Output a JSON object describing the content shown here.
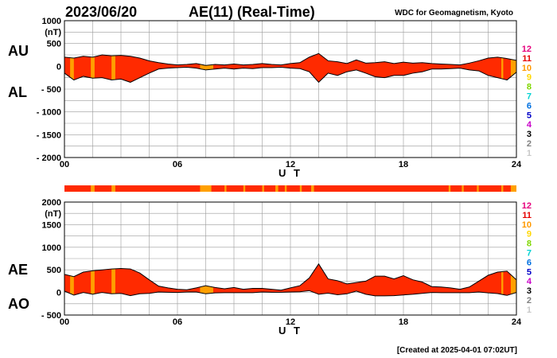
{
  "header": {
    "date": "2023/06/20",
    "title": "AE(11) (Real-Time)",
    "source": "WDC for Geomagnetism, Kyoto"
  },
  "footer": {
    "created": "[Created at 2025-04-01 07:02UT]"
  },
  "colors": {
    "fill_primary": "#ff2a00",
    "fill_partial": "#ffa000",
    "grid": "#9a9a9a",
    "curve": "#000000"
  },
  "station_count_legend": [
    {
      "label": "12",
      "color": "#e6007e"
    },
    {
      "label": "11",
      "color": "#e60000"
    },
    {
      "label": "10",
      "color": "#ff9900"
    },
    {
      "label": "9",
      "color": "#ffd700"
    },
    {
      "label": "8",
      "color": "#7fd700"
    },
    {
      "label": "7",
      "color": "#00d2d2"
    },
    {
      "label": "6",
      "color": "#0070e0"
    },
    {
      "label": "5",
      "color": "#0000c8"
    },
    {
      "label": "4",
      "color": "#c800c8"
    },
    {
      "label": "3",
      "color": "#000000"
    },
    {
      "label": "2",
      "color": "#808080"
    },
    {
      "label": "1",
      "color": "#c8c8c8"
    }
  ],
  "chart_data": [
    {
      "type": "area",
      "panel": "AU/AL",
      "series_labels": [
        "AU",
        "AL"
      ],
      "yunit": "(nT)",
      "xlabel": "U T",
      "xlim": [
        0,
        24
      ],
      "ylim": [
        -2000,
        1000
      ],
      "yticks": [
        "1000",
        "500",
        "0",
        "- 500",
        "- 1000",
        "- 1500",
        "- 2000"
      ],
      "ytick_values": [
        1000,
        500,
        0,
        -500,
        -1000,
        -1500,
        -2000
      ],
      "xticks": [
        "00",
        "06",
        "12",
        "18",
        "24"
      ],
      "xtick_values": [
        0,
        6,
        12,
        18,
        24
      ],
      "x": [
        0,
        0.5,
        1,
        1.5,
        2,
        2.5,
        3,
        3.5,
        4,
        4.5,
        5,
        5.5,
        6,
        6.5,
        7,
        7.5,
        8,
        8.5,
        9,
        9.5,
        10,
        10.5,
        11,
        11.5,
        12,
        12.5,
        13,
        13.5,
        14,
        14.5,
        15,
        15.5,
        16,
        16.5,
        17,
        17.5,
        18,
        18.5,
        19,
        19.5,
        20,
        20.5,
        21,
        21.5,
        22,
        22.5,
        23,
        23.5,
        24
      ],
      "au": [
        200,
        180,
        220,
        200,
        250,
        230,
        240,
        220,
        180,
        120,
        80,
        50,
        30,
        40,
        60,
        20,
        40,
        30,
        50,
        30,
        40,
        60,
        40,
        30,
        60,
        80,
        200,
        280,
        120,
        100,
        60,
        140,
        70,
        80,
        100,
        60,
        90,
        70,
        80,
        60,
        50,
        40,
        30,
        70,
        120,
        180,
        200,
        170,
        130
      ],
      "al": [
        -150,
        -300,
        -220,
        -260,
        -250,
        -300,
        -280,
        -350,
        -250,
        -150,
        -60,
        -40,
        -30,
        -20,
        -40,
        -80,
        -60,
        -40,
        -60,
        -40,
        -50,
        -30,
        -30,
        -20,
        -40,
        -50,
        -120,
        -350,
        -150,
        -200,
        -120,
        -80,
        -150,
        -230,
        -250,
        -200,
        -200,
        -150,
        -120,
        -60,
        -60,
        -50,
        -40,
        -80,
        -100,
        -200,
        -250,
        -300,
        -130
      ],
      "partial_bands": [
        [
          0.3,
          0.5
        ],
        [
          1.4,
          1.6
        ],
        [
          2.5,
          2.7
        ],
        [
          7.2,
          7.9
        ],
        [
          23.2,
          23.3
        ],
        [
          23.7,
          24
        ]
      ]
    },
    {
      "type": "area",
      "panel": "AE/AO",
      "series_labels": [
        "AE",
        "AO"
      ],
      "yunit": "(nT)",
      "xlabel": "U T",
      "xlim": [
        0,
        24
      ],
      "ylim": [
        -500,
        2000
      ],
      "yticks": [
        "2000",
        "1500",
        "1000",
        "500",
        "0",
        "- 500"
      ],
      "ytick_values": [
        2000,
        1500,
        1000,
        500,
        0,
        -500
      ],
      "xticks": [
        "00",
        "06",
        "12",
        "18",
        "24"
      ],
      "xtick_values": [
        0,
        6,
        12,
        18,
        24
      ],
      "x": [
        0,
        0.5,
        1,
        1.5,
        2,
        2.5,
        3,
        3.5,
        4,
        4.5,
        5,
        5.5,
        6,
        6.5,
        7,
        7.5,
        8,
        8.5,
        9,
        9.5,
        10,
        10.5,
        11,
        11.5,
        12,
        12.5,
        13,
        13.5,
        14,
        14.5,
        15,
        15.5,
        16,
        16.5,
        17,
        17.5,
        18,
        18.5,
        19,
        19.5,
        20,
        20.5,
        21,
        21.5,
        22,
        22.5,
        23,
        23.5,
        24
      ],
      "ae": [
        400,
        350,
        450,
        480,
        500,
        520,
        530,
        520,
        430,
        280,
        140,
        100,
        70,
        60,
        100,
        150,
        110,
        80,
        110,
        70,
        90,
        90,
        70,
        50,
        100,
        150,
        320,
        630,
        300,
        260,
        190,
        220,
        250,
        360,
        360,
        300,
        370,
        280,
        230,
        130,
        120,
        100,
        70,
        120,
        250,
        380,
        450,
        470,
        280
      ],
      "ao": [
        30,
        -60,
        0,
        -40,
        0,
        -30,
        -20,
        -70,
        -30,
        -20,
        10,
        5,
        0,
        10,
        10,
        -30,
        -10,
        -5,
        -5,
        -5,
        -5,
        10,
        5,
        5,
        10,
        15,
        40,
        -40,
        -15,
        -50,
        -30,
        30,
        -40,
        -75,
        -75,
        -70,
        -55,
        -40,
        -20,
        0,
        -5,
        -5,
        -5,
        -5,
        10,
        -10,
        -25,
        -65,
        0
      ],
      "partial_bands": [
        [
          0.3,
          0.5
        ],
        [
          1.4,
          1.6
        ],
        [
          2.5,
          2.7
        ],
        [
          7.2,
          7.9
        ],
        [
          23.2,
          23.3
        ],
        [
          23.7,
          24
        ]
      ]
    }
  ],
  "coverage_bar": {
    "partial_bands": [
      [
        1.4,
        1.6
      ],
      [
        2.5,
        2.7
      ],
      [
        7.2,
        7.8
      ],
      [
        8.5,
        8.6
      ],
      [
        9.5,
        9.6
      ],
      [
        10.5,
        10.6
      ],
      [
        11.2,
        11.35
      ],
      [
        11.7,
        11.8
      ],
      [
        12.5,
        12.6
      ],
      [
        13.1,
        13.25
      ],
      [
        20.4,
        20.5
      ],
      [
        21.1,
        21.2
      ],
      [
        21.9,
        22.0
      ],
      [
        23.2,
        23.3
      ],
      [
        23.7,
        24
      ]
    ]
  }
}
